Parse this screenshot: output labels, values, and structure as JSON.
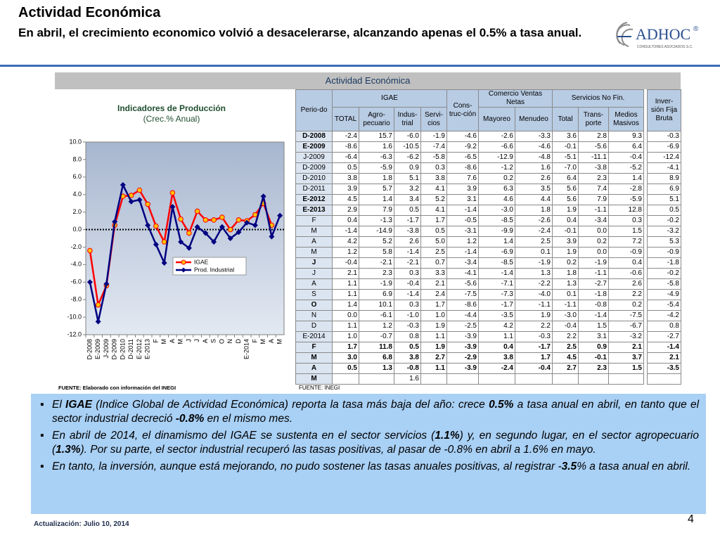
{
  "header": {
    "title": "Actividad Económica",
    "subtitle": "En abril, el crecimiento economico volvió a desacelerarse, alcanzando apenas el 0.5% a tasa  anual.",
    "logo": "ADHOC",
    "logo_mark": "®",
    "logo_tagline": "CONSULTORES ASOCIADOS S.C."
  },
  "section_title": "Actividad Económica",
  "chart_data": {
    "type": "line",
    "title": "Indicadores de Producción",
    "subtitle": "(Crec.% Anual)",
    "categories": [
      "D-2008",
      "E-2009",
      "J-2009",
      "D-2009",
      "D-2010",
      "D-2011",
      "E-2012",
      "E-2013",
      "F",
      "M",
      "A",
      "M",
      "J",
      "J",
      "A",
      "S",
      "O",
      "N",
      "D",
      "E-2014",
      "F",
      "M",
      "A",
      "M"
    ],
    "series": [
      {
        "name": "IGAE",
        "color": "#ff0000",
        "marker_color": "#ffc000",
        "values": [
          -2.4,
          -8.6,
          -6.4,
          0.5,
          3.8,
          3.9,
          4.5,
          2.9,
          0.4,
          -1.4,
          4.2,
          1.2,
          -0.4,
          2.1,
          1.1,
          1.1,
          1.4,
          0.0,
          1.1,
          1.0,
          1.7,
          3.0,
          0.5,
          null
        ]
      },
      {
        "name": "Prod. Industrial",
        "color": "#000080",
        "marker_color": "#000080",
        "values": [
          -6.0,
          -10.5,
          -6.2,
          0.9,
          5.1,
          3.2,
          3.4,
          0.5,
          -1.7,
          -3.8,
          2.6,
          -1.4,
          -2.1,
          0.3,
          -0.4,
          -1.4,
          0.3,
          -1.0,
          -0.3,
          0.8,
          0.5,
          3.8,
          -0.8,
          1.6
        ]
      }
    ],
    "ylim": [
      -12,
      10
    ],
    "yticks": [
      {
        "value": -12,
        "label": "-12.0"
      },
      {
        "value": -10,
        "label": "-10.0"
      },
      {
        "value": -8,
        "label": "-8.0"
      },
      {
        "value": -6,
        "label": "-6.0"
      },
      {
        "value": -4,
        "label": "-4.0"
      },
      {
        "value": -2,
        "label": "-2.0"
      },
      {
        "value": 0,
        "label": "0.0"
      },
      {
        "value": 2,
        "label": "2.0"
      },
      {
        "value": 4,
        "label": "4.0"
      },
      {
        "value": 6,
        "label": "6.0"
      },
      {
        "value": 8,
        "label": "8.0"
      },
      {
        "value": 10,
        "label": "10.0"
      }
    ],
    "legend": "bottom",
    "source": "FUENTE: Elaborado con información del INEGI"
  },
  "table": {
    "headers": [
      "Perio-do",
      "IGAE",
      "Cons-truc-ción",
      "Comercio Ventas Netas",
      "Servicios No Fin.",
      "Inver-sión Fija Bruta",
      "TOTAL",
      "Agro-pecuario",
      "Indus-trial",
      "Servi-cios",
      "Mayoreo",
      "Menudeo",
      "Total",
      "Trans-porte",
      "Medios Masivos"
    ],
    "rows": [
      [
        "D-2008",
        "-2.4",
        "15.7",
        "-6.0",
        "-1.9",
        "-4.6",
        "-2.6",
        "-3.3",
        "3.6",
        "2.8",
        "9.3",
        "-0.3"
      ],
      [
        "E-2009",
        "-8.6",
        "1.6",
        "-10.5",
        "-7.4",
        "-9.2",
        "-6.6",
        "-4.6",
        "-0.1",
        "-5.6",
        "6.4",
        "-6.9"
      ],
      [
        "J-2009",
        "-6.4",
        "-6.3",
        "-6.2",
        "-5.8",
        "-6.5",
        "-12.9",
        "-4.8",
        "-5.1",
        "-11.1",
        "-0.4",
        "-12.4"
      ],
      [
        "D-2009",
        "0.5",
        "-5.9",
        "0.9",
        "0.3",
        "-8.6",
        "-1.2",
        "1.6",
        "-7.0",
        "-3.8",
        "-5.2",
        "-4.1"
      ],
      [
        "D-2010",
        "3.8",
        "1.8",
        "5.1",
        "3.8",
        "7.6",
        "0.2",
        "2.6",
        "6.4",
        "2.3",
        "1.4",
        "8.9"
      ],
      [
        "D-2011",
        "3.9",
        "5.7",
        "3.2",
        "4.1",
        "3.9",
        "6.3",
        "3.5",
        "5.6",
        "7.4",
        "-2.8",
        "6.9"
      ],
      [
        "E-2012",
        "4.5",
        "1.4",
        "3.4",
        "5.2",
        "3.1",
        "4.6",
        "4.4",
        "5.6",
        "7.9",
        "-5.9",
        "5.1"
      ],
      [
        "E-2013",
        "2.9",
        "7.9",
        "0.5",
        "4.1",
        "-1.4",
        "-3.0",
        "1.8",
        "1.9",
        "-1.1",
        "12.8",
        "0.5"
      ],
      [
        "F",
        "0.4",
        "-1.3",
        "-1.7",
        "1.7",
        "-0.5",
        "-8.5",
        "-2.6",
        "0.4",
        "-3.4",
        "0.3",
        "-0.2"
      ],
      [
        "M",
        "-1.4",
        "-14.9",
        "-3.8",
        "0.5",
        "-3.1",
        "-9.9",
        "-2.4",
        "-0.1",
        "0.0",
        "1.5",
        "-3.2"
      ],
      [
        "A",
        "4.2",
        "5.2",
        "2.6",
        "5.0",
        "1.2",
        "1.4",
        "2.5",
        "3.9",
        "0.2",
        "7.2",
        "5.3"
      ],
      [
        "M",
        "1.2",
        "5.8",
        "-1.4",
        "2.5",
        "-1.4",
        "-6.9",
        "0.1",
        "1.9",
        "0.0",
        "-0.9",
        "-0.9"
      ],
      [
        "J",
        "-0.4",
        "-2.1",
        "-2.1",
        "0.7",
        "-3.4",
        "-8.5",
        "-1.9",
        "0.2",
        "-1.9",
        "0.4",
        "-1.8"
      ],
      [
        "J",
        "2.1",
        "2.3",
        "0.3",
        "3.3",
        "-4.1",
        "-1.4",
        "1.3",
        "1.8",
        "-1.1",
        "-0.6",
        "-0.2"
      ],
      [
        "A",
        "1.1",
        "-1.9",
        "-0.4",
        "2.1",
        "-5.6",
        "-7.1",
        "-2.2",
        "1.3",
        "-2.7",
        "2.6",
        "-5.8"
      ],
      [
        "S",
        "1.1",
        "6.9",
        "-1.4",
        "2.4",
        "-7.5",
        "-7.3",
        "-4.0",
        "0.1",
        "-1.8",
        "2.2",
        "-4.9"
      ],
      [
        "O",
        "1.4",
        "10.1",
        "0.3",
        "1.7",
        "-8.6",
        "-1.7",
        "-1.1",
        "-1.1",
        "-0.8",
        "0.2",
        "-5.4"
      ],
      [
        "N",
        "0.0",
        "-6.1",
        "-1.0",
        "1.0",
        "-4.4",
        "-3.5",
        "1.9",
        "-3.0",
        "-1.4",
        "-7.5",
        "-4.2"
      ],
      [
        "D",
        "1.1",
        "1.2",
        "-0.3",
        "1.9",
        "-2.5",
        "4.2",
        "2.2",
        "-0.4",
        "1.5",
        "-6.7",
        "0.8"
      ],
      [
        "E-2014",
        "1.0",
        "-0.7",
        "0.8",
        "1.1",
        "-3.9",
        "1.1",
        "-0.3",
        "2.2",
        "3.1",
        "-3.2",
        "-2.7"
      ],
      [
        "F",
        "1.7",
        "11.8",
        "0.5",
        "1.9",
        "-3.9",
        "0.4",
        "-1.7",
        "2.5",
        "0.9",
        "2.1",
        "-1.4"
      ],
      [
        "M",
        "3.0",
        "6.8",
        "3.8",
        "2.7",
        "-2.9",
        "3.8",
        "1.7",
        "4.5",
        "-0.1",
        "3.7",
        "2.1"
      ],
      [
        "A",
        "0.5",
        "1.3",
        "-0.8",
        "1.1",
        "-3.9",
        "-2.4",
        "-0.4",
        "2.7",
        "2.3",
        "1.5",
        "-3.5"
      ],
      [
        "M",
        null,
        null,
        "1.6",
        null,
        null,
        null,
        null,
        null,
        null,
        null,
        null
      ]
    ],
    "source": "FUENTE: INEGI"
  },
  "bullets": [
    [
      "El ",
      "IGAE",
      " (Indice Global de Actividad Económica) reporta  la tasa más baja del año: crece ",
      "0.5%",
      "  a tasa anual en abril, en tanto que el sector industrial decreció ",
      "-0.8%",
      " en el mismo mes."
    ],
    [
      "En abril de 2014, el dinamismo del IGAE se sustenta en el sector servicios (",
      "1.1%",
      ") y, en segundo lugar, en el sector agropecuario (",
      "1.3%",
      "). Por su parte, el sector industrial recuperó las tasas positivas, al pasar de -0.8% en abril a 1.6% en mayo."
    ],
    [
      "En tanto, la inversión,  aunque está mejorando, no pudo sostener las tasas anuales positivas, al registrar -",
      "3.5",
      "% a tasa anual en abril."
    ]
  ],
  "footer": {
    "updated": "Actualización:  Julio 10, 2014",
    "page": "4"
  }
}
